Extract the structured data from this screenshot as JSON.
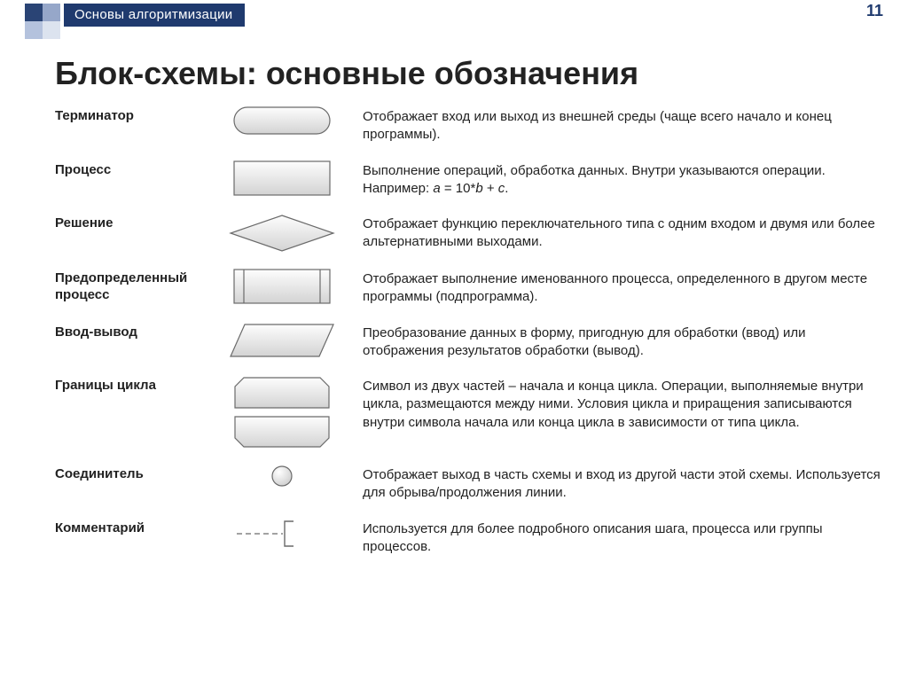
{
  "header": {
    "breadcrumb": "Основы алгоритмизации",
    "page_number": "11"
  },
  "title": "Блок-схемы: основные обозначения",
  "colors": {
    "accent": "#1f3a6e",
    "shape_stroke": "#6a6a6a",
    "shape_fill_light": "#f6f6f6",
    "shape_fill_dark": "#d7d7d7",
    "text": "#222222",
    "bg": "#ffffff"
  },
  "rows": [
    {
      "name": "Терминатор",
      "shape": "terminator",
      "desc": "Отображает вход или выход из внешней среды (чаще всего начало и конец программы)."
    },
    {
      "name": "Процесс",
      "shape": "process",
      "desc_html": "Выполнение операций, обработка данных. Внутри указываются операции. Например: <i>a</i> = 10*<i>b</i> + <i>c</i>."
    },
    {
      "name": "Решение",
      "shape": "decision",
      "desc": "Отображает функцию переключательного типа с одним входом и двумя или более альтернативными выходами."
    },
    {
      "name": "Предопределенный процесс",
      "shape": "predef",
      "desc": "Отображает выполнение именованного процесса, определенного в другом месте программы (подпрограмма)."
    },
    {
      "name": "Ввод-вывод",
      "shape": "io",
      "desc": "Преобразование данных в форму, пригодную для обработки (ввод) или отображения результатов обработки (вывод)."
    },
    {
      "name": "Границы цикла",
      "shape": "loop",
      "desc": "Символ из двух частей – начала и конца цикла. Операции, выполняемые внутри цикла, размещаются между ними. Условия цикла и приращения записываются внутри символа начала или конца цикла в зависимости от типа цикла."
    },
    {
      "name": "Соединитель",
      "shape": "connector",
      "desc": "Отображает выход в часть схемы и вход из другой части этой схемы. Используется для обрыва/продолжения линии."
    },
    {
      "name": "Комментарий",
      "shape": "comment",
      "desc": "Используется для более подробного описания шага, процесса или группы процессов."
    }
  ]
}
